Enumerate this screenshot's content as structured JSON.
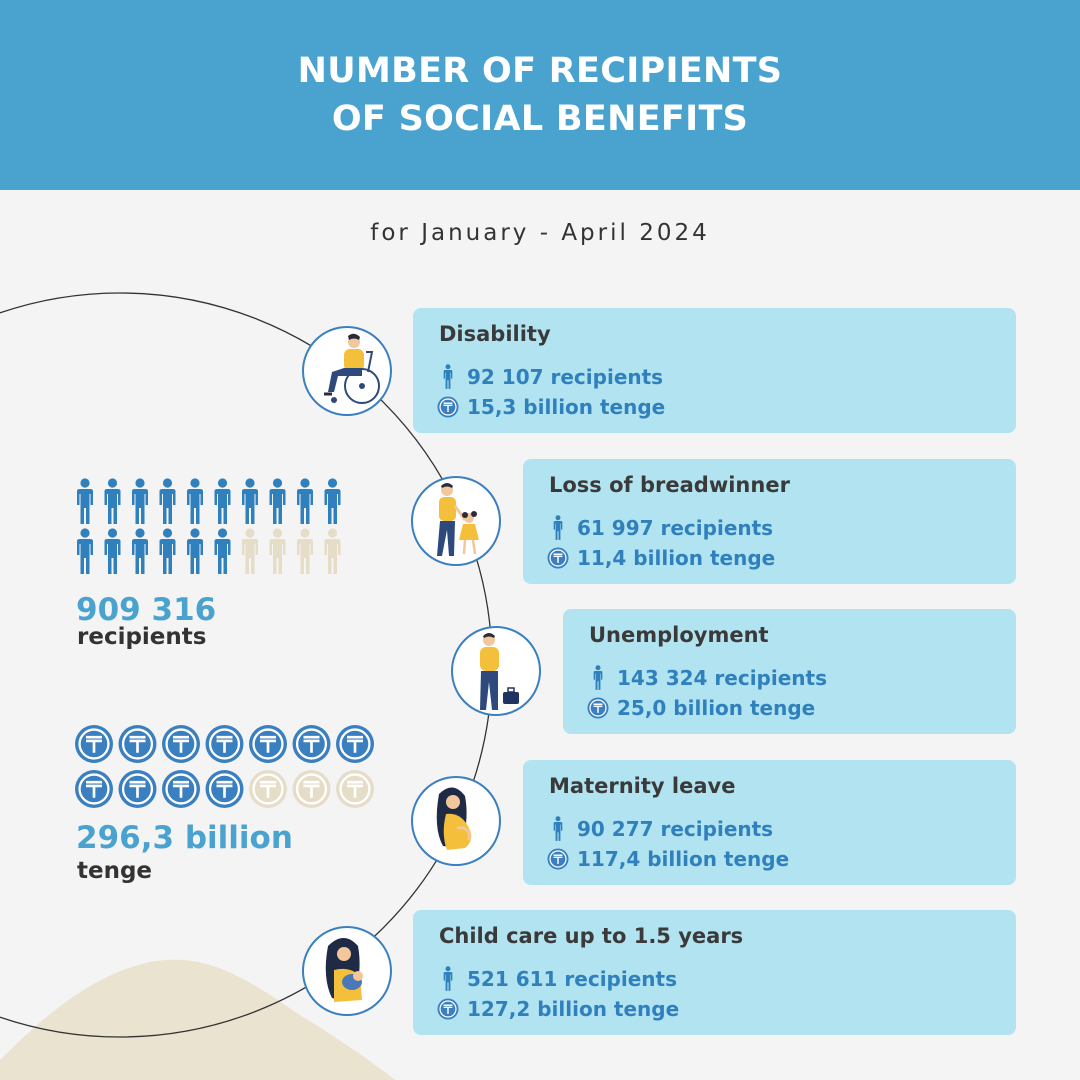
{
  "header": {
    "title_line1": "NUMBER OF RECIPIENTS",
    "title_line2": "OF SOCIAL BENEFITS"
  },
  "subtitle": "for January - April 2024",
  "summary": {
    "recipients_value": "909 316",
    "recipients_label": "recipients",
    "recipients_icons": {
      "filled": 16,
      "total": 20
    },
    "tenge_value": "296,3 billion",
    "tenge_label": "tenge",
    "tenge_icons": {
      "filled": 11,
      "total": 14
    }
  },
  "categories": [
    {
      "title": "Disability",
      "recipients": "92 107  recipients",
      "amount": "15,3 billion tenge",
      "icon": "wheelchair-person-icon"
    },
    {
      "title": "Loss of breadwinner",
      "recipients": "61 997  recipients",
      "amount": "11,4  billion tenge",
      "icon": "parent-child-icon"
    },
    {
      "title": "Unemployment",
      "recipients": "143 324  recipients",
      "amount": "25,0  billion tenge",
      "icon": "man-with-briefcase-icon"
    },
    {
      "title": "Maternity leave",
      "recipients": "90 277  recipients",
      "amount": "117,4 billion tenge",
      "icon": "pregnant-woman-icon"
    },
    {
      "title": "Child care up to 1.5 years",
      "recipients": "521 611  recipients",
      "amount": "127,2  billion tenge",
      "icon": "mother-with-baby-icon"
    }
  ],
  "colors": {
    "header": "#4aa3cf",
    "card": "#b1e3f0",
    "accent_blue": "#2f80bd",
    "icon_blue": "#3a7fbf",
    "faded": "#e6ddc8",
    "person_shirt": "#f4bf3a"
  }
}
